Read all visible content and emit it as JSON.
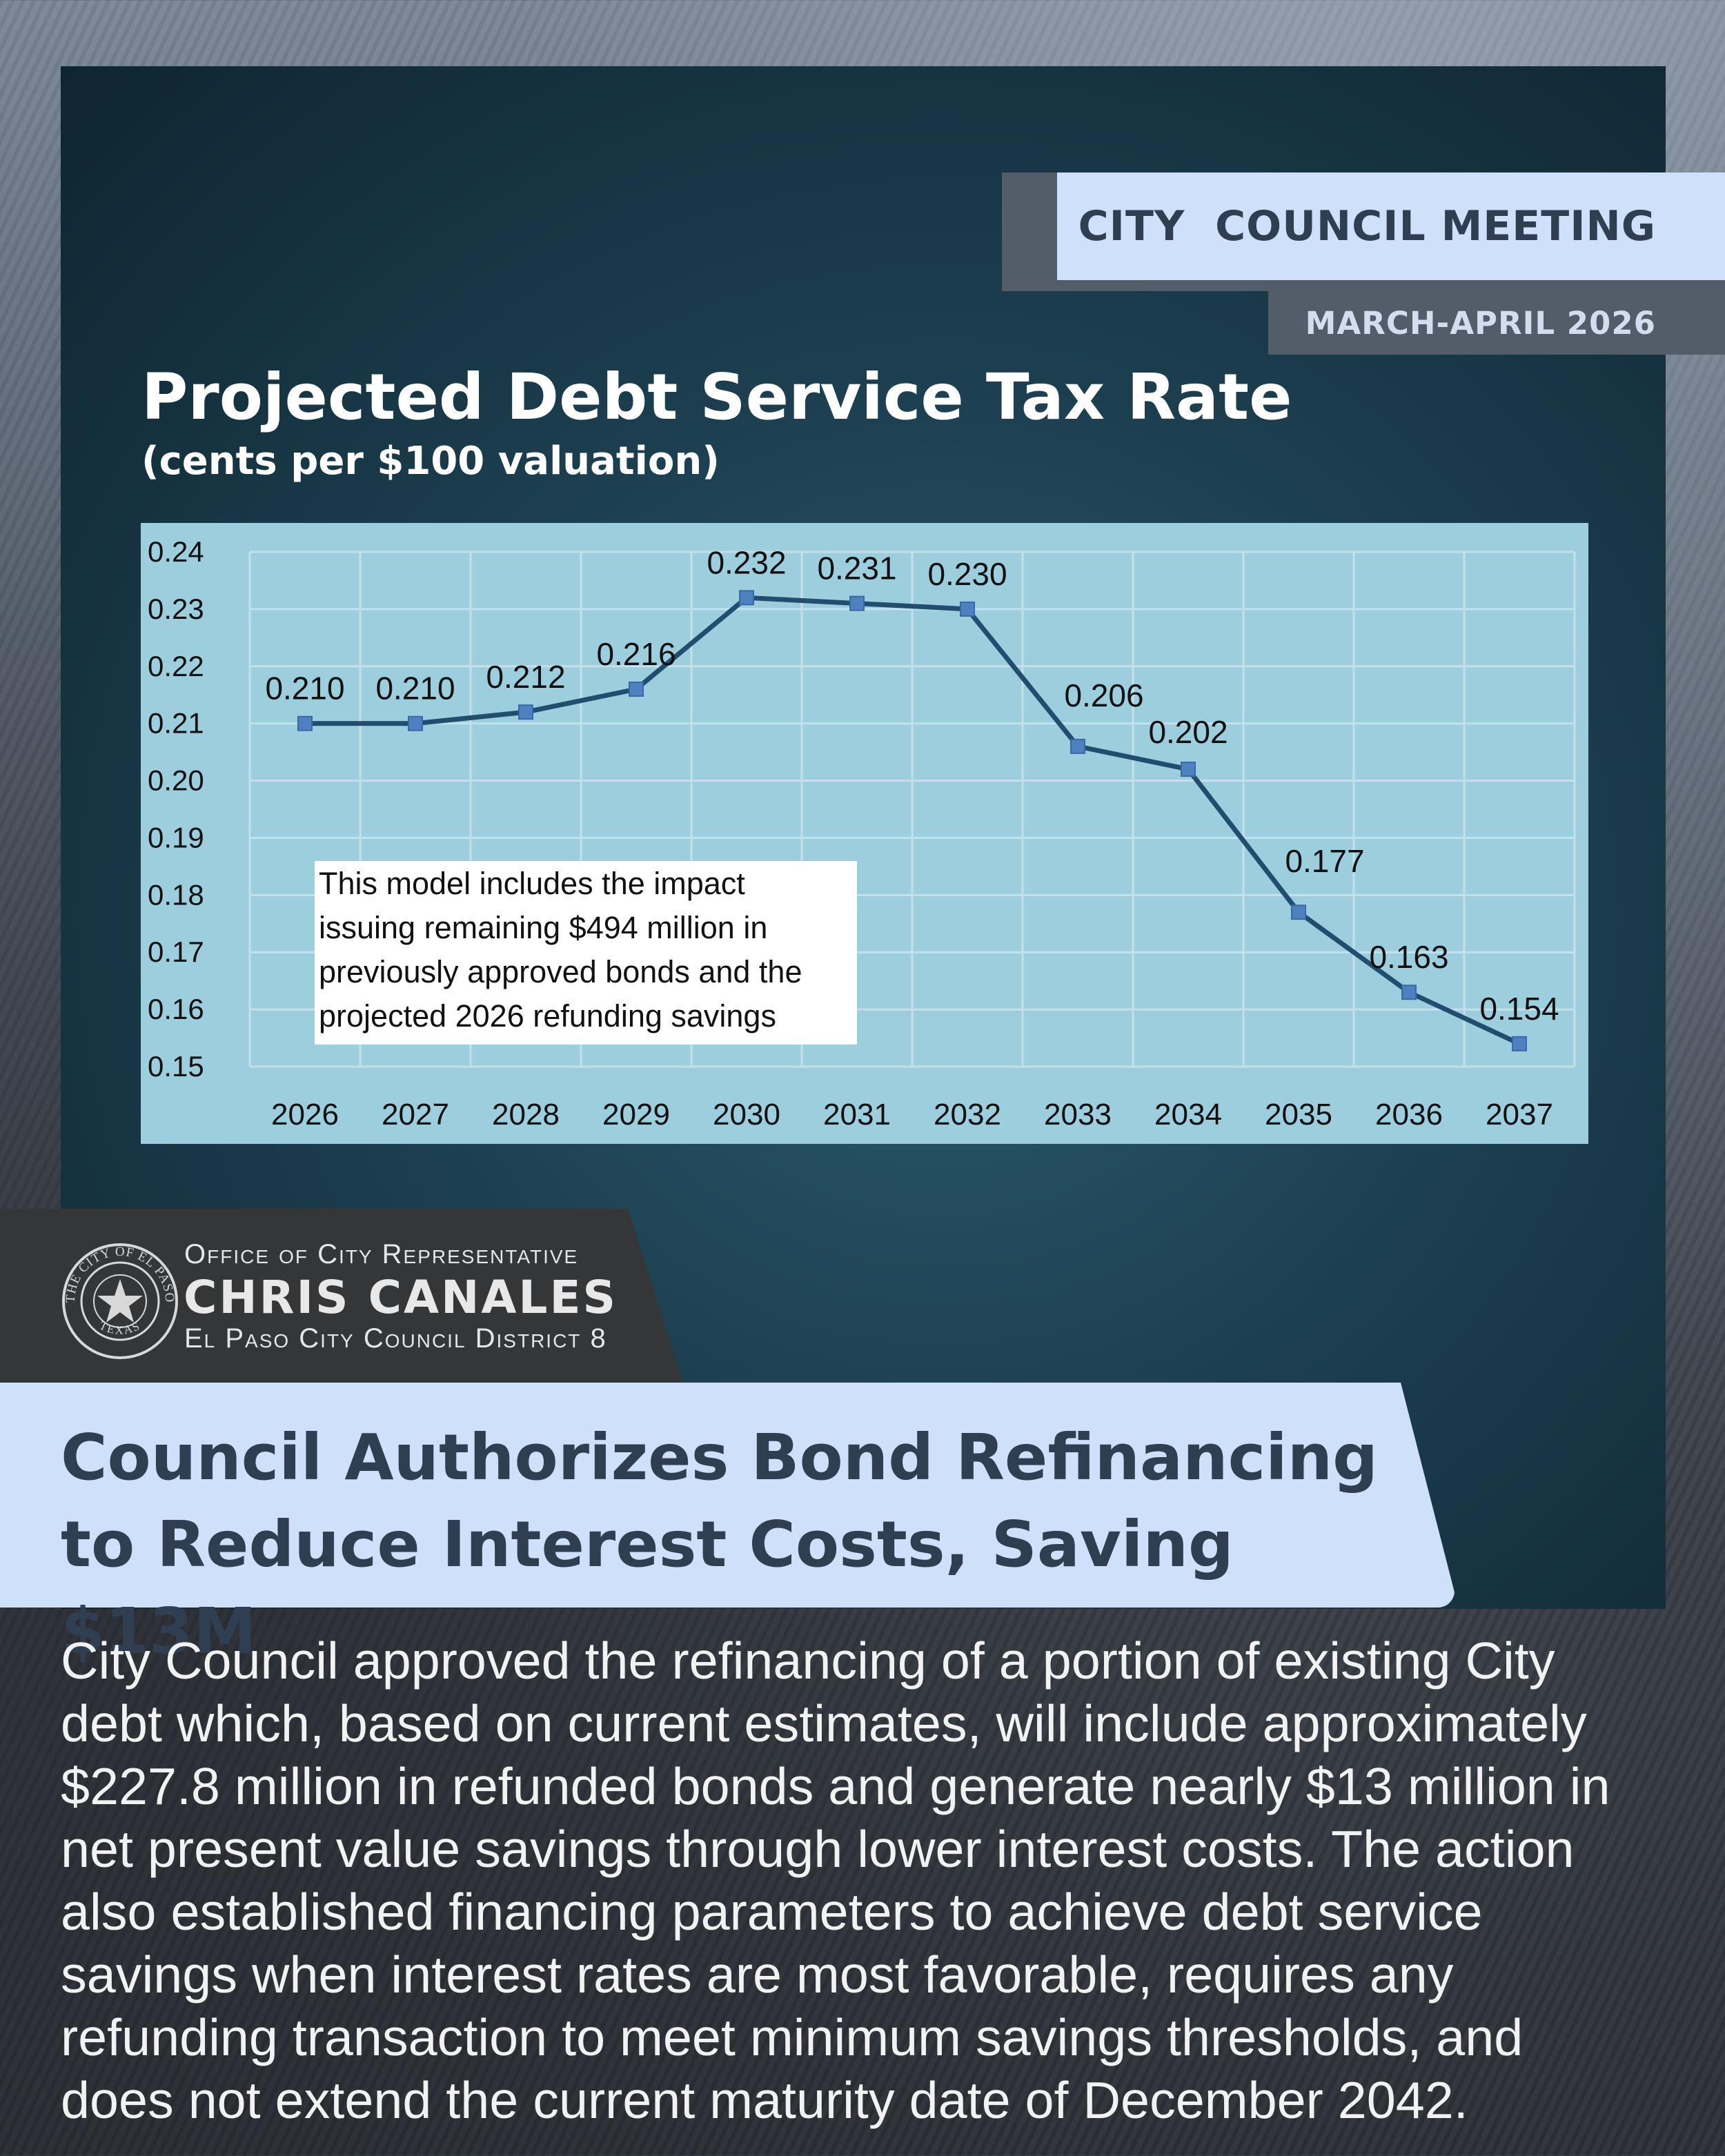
{
  "header": {
    "title": "CITY  COUNCIL MEETING",
    "date": "MARCH-APRIL 2026"
  },
  "chart_title": "Projected Debt Service Tax Rate",
  "chart_subtitle": "(cents per $100 valuation)",
  "chart_data": {
    "type": "line",
    "title": "Projected Debt Service Tax Rate",
    "subtitle": "(cents per $100 valuation)",
    "xlabel": "",
    "ylabel": "",
    "categories": [
      "2026",
      "2027",
      "2028",
      "2029",
      "2030",
      "2031",
      "2032",
      "2033",
      "2034",
      "2035",
      "2036",
      "2037"
    ],
    "series": [
      {
        "values": [
          0.21,
          0.21,
          0.212,
          0.216,
          0.232,
          0.231,
          0.23,
          0.206,
          0.202,
          0.177,
          0.163,
          0.154
        ],
        "labels": [
          "0.210",
          "0.210",
          "0.212",
          "0.216",
          "0.232",
          "0.231",
          "0.230",
          "0.206",
          "0.202",
          "0.177",
          "0.163",
          "0.154"
        ]
      }
    ],
    "ylim": [
      0.15,
      0.24
    ],
    "yticks": [
      "0.24",
      "0.23",
      "0.22",
      "0.21",
      "0.20",
      "0.19",
      "0.18",
      "0.17",
      "0.16",
      "0.15"
    ],
    "grid": true,
    "legend": "none",
    "annotation": [
      "This model includes the impact",
      "issuing remaining $494 million in",
      "previously approved bonds and the",
      "projected 2026 refunding savings"
    ],
    "colors": {
      "plot_background": "#9dcede",
      "line": "#234d6e",
      "marker": "#4f80c0",
      "grid": "#c4e0ea"
    }
  },
  "office": {
    "line1": "Office of City Representative",
    "name": "CHRIS CANALES",
    "line3": "El Paso City Council District 8",
    "seal_text_top": "THE CITY OF EL PASO",
    "seal_text_bottom": "TEXAS"
  },
  "headline": {
    "line1": "Council Authorizes Bond Refinancing",
    "line2": "to Reduce Interest Costs, Saving $13M"
  },
  "body": {
    "lines": [
      "City Council approved the refinancing of a portion of existing City",
      "debt which, based on current estimates, will include approximately",
      "$227.8 million in refunded bonds and generate nearly $13 million in",
      "net present value savings through lower interest costs. The action",
      "also established financing parameters to achieve debt service",
      "savings when interest rates are most favorable, requires any",
      "refunding transaction to meet minimum savings thresholds, and",
      "does not extend the current maturity date of December 2042."
    ]
  },
  "colors": {
    "accent_light": "#cfe0fb",
    "accent_dark": "#525d69",
    "text_dark": "#2f3e50"
  }
}
